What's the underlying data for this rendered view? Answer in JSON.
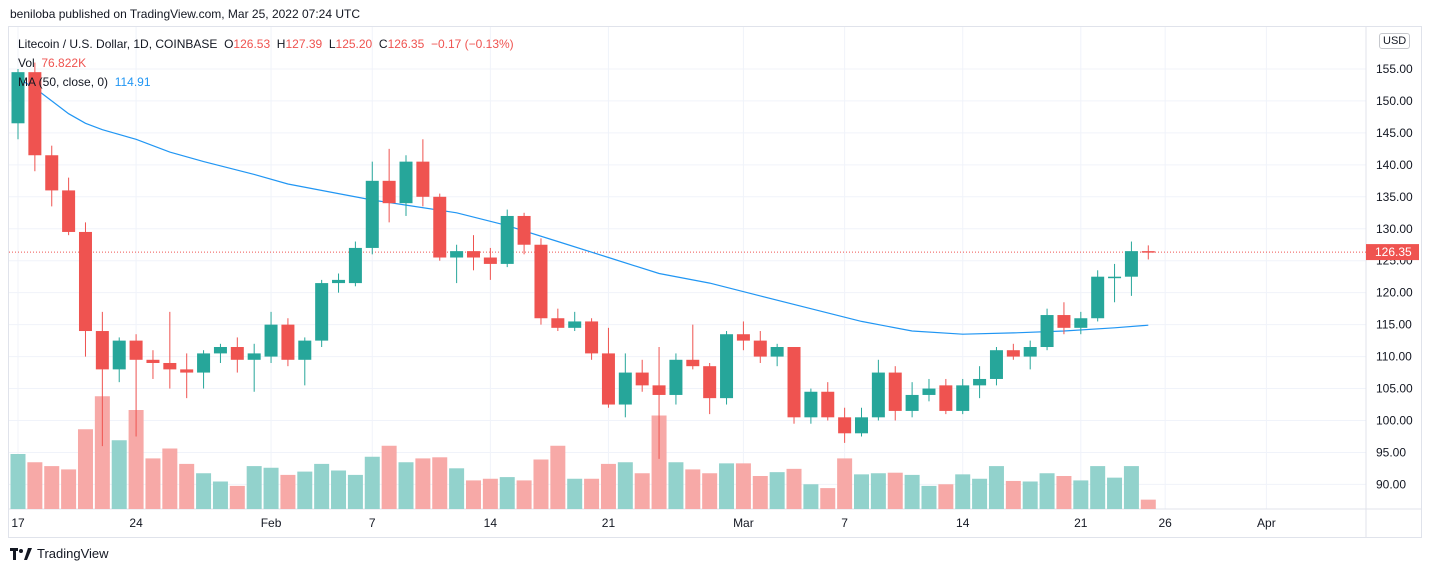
{
  "header": {
    "published": "beniloba published on TradingView.com, Mar 25, 2022 07:24 UTC"
  },
  "legend": {
    "symbol": "Litecoin / U.S. Dollar, 1D, COINBASE",
    "o_label": "O",
    "o": "126.53",
    "h_label": "H",
    "h": "127.39",
    "l_label": "L",
    "l": "125.20",
    "c_label": "C",
    "c": "126.35",
    "change": "−0.17 (−0.13%)",
    "vol_label": "Vol",
    "vol": "76.822K",
    "ma_label": "MA (50, close, 0)",
    "ma": "114.91"
  },
  "currency_badge": "USD",
  "price_tag": "126.35",
  "footer": {
    "brand": "TradingView"
  },
  "colors": {
    "up": "#26a69a",
    "down": "#ef5350",
    "up_vol": "#92d2cc",
    "down_vol": "#f7a9a7",
    "ma": "#2196f3",
    "grid": "#f0f3fa"
  },
  "chart_data": {
    "type": "candlestick",
    "ylim": [
      86,
      160
    ],
    "y_ticks": [
      "90.00",
      "95.00",
      "100.00",
      "105.00",
      "110.00",
      "115.00",
      "120.00",
      "125.00",
      "130.00",
      "135.00",
      "140.00",
      "145.00",
      "150.00",
      "155.00"
    ],
    "x_ticks": [
      {
        "label": "17",
        "date": "2022-01-17"
      },
      {
        "label": "24",
        "date": "2022-01-24"
      },
      {
        "label": "Feb",
        "date": "2022-02-01"
      },
      {
        "label": "7",
        "date": "2022-02-07"
      },
      {
        "label": "14",
        "date": "2022-02-14"
      },
      {
        "label": "21",
        "date": "2022-02-21"
      },
      {
        "label": "Mar",
        "date": "2022-03-01"
      },
      {
        "label": "7",
        "date": "2022-03-07"
      },
      {
        "label": "14",
        "date": "2022-03-14"
      },
      {
        "label": "21",
        "date": "2022-03-21"
      },
      {
        "label": "26",
        "date": "2022-03-26"
      },
      {
        "label": "Apr",
        "date": "2022-04-01"
      }
    ],
    "x_range": [
      "2022-01-17",
      "2022-04-05"
    ],
    "candles": [
      {
        "date": "2022-01-17",
        "o": 146.5,
        "h": 155.0,
        "l": 144.0,
        "c": 154.5,
        "v": 1.0
      },
      {
        "date": "2022-01-18",
        "o": 154.5,
        "h": 156.0,
        "l": 139.0,
        "c": 141.5,
        "v": 0.85
      },
      {
        "date": "2022-01-19",
        "o": 141.5,
        "h": 143.0,
        "l": 133.5,
        "c": 136.0,
        "v": 0.78
      },
      {
        "date": "2022-01-20",
        "o": 136.0,
        "h": 138.0,
        "l": 129.0,
        "c": 129.5,
        "v": 0.72
      },
      {
        "date": "2022-01-21",
        "o": 129.5,
        "h": 131.0,
        "l": 110.0,
        "c": 114.0,
        "v": 1.45
      },
      {
        "date": "2022-01-22",
        "o": 114.0,
        "h": 117.0,
        "l": 96.0,
        "c": 108.0,
        "v": 2.05
      },
      {
        "date": "2022-01-23",
        "o": 108.0,
        "h": 113.0,
        "l": 106.0,
        "c": 112.5,
        "v": 1.25
      },
      {
        "date": "2022-01-24",
        "o": 112.5,
        "h": 113.5,
        "l": 97.5,
        "c": 109.5,
        "v": 1.8
      },
      {
        "date": "2022-01-25",
        "o": 109.5,
        "h": 111.0,
        "l": 106.5,
        "c": 109.0,
        "v": 0.92
      },
      {
        "date": "2022-01-26",
        "o": 109.0,
        "h": 117.0,
        "l": 105.0,
        "c": 108.0,
        "v": 1.1
      },
      {
        "date": "2022-01-27",
        "o": 108.0,
        "h": 110.5,
        "l": 103.5,
        "c": 107.5,
        "v": 0.82
      },
      {
        "date": "2022-01-28",
        "o": 107.5,
        "h": 111.0,
        "l": 105.0,
        "c": 110.5,
        "v": 0.65
      },
      {
        "date": "2022-01-29",
        "o": 110.5,
        "h": 112.0,
        "l": 109.0,
        "c": 111.5,
        "v": 0.5
      },
      {
        "date": "2022-01-30",
        "o": 111.5,
        "h": 113.0,
        "l": 107.5,
        "c": 109.5,
        "v": 0.42
      },
      {
        "date": "2022-01-31",
        "o": 109.5,
        "h": 112.0,
        "l": 104.5,
        "c": 110.5,
        "v": 0.78
      },
      {
        "date": "2022-02-01",
        "o": 110.0,
        "h": 117.0,
        "l": 109.0,
        "c": 115.0,
        "v": 0.75
      },
      {
        "date": "2022-02-02",
        "o": 115.0,
        "h": 116.0,
        "l": 108.5,
        "c": 109.5,
        "v": 0.62
      },
      {
        "date": "2022-02-03",
        "o": 109.5,
        "h": 113.0,
        "l": 105.5,
        "c": 112.5,
        "v": 0.68
      },
      {
        "date": "2022-02-04",
        "o": 112.5,
        "h": 122.0,
        "l": 111.5,
        "c": 121.5,
        "v": 0.82
      },
      {
        "date": "2022-02-05",
        "o": 121.5,
        "h": 123.0,
        "l": 120.0,
        "c": 122.0,
        "v": 0.7
      },
      {
        "date": "2022-02-06",
        "o": 121.5,
        "h": 128.0,
        "l": 121.0,
        "c": 127.0,
        "v": 0.62
      },
      {
        "date": "2022-02-07",
        "o": 127.0,
        "h": 140.5,
        "l": 126.0,
        "c": 137.5,
        "v": 0.95
      },
      {
        "date": "2022-02-08",
        "o": 137.5,
        "h": 142.5,
        "l": 131.0,
        "c": 134.0,
        "v": 1.15
      },
      {
        "date": "2022-02-09",
        "o": 134.0,
        "h": 141.5,
        "l": 132.0,
        "c": 140.5,
        "v": 0.85
      },
      {
        "date": "2022-02-10",
        "o": 140.5,
        "h": 144.0,
        "l": 133.5,
        "c": 135.0,
        "v": 0.92
      },
      {
        "date": "2022-02-11",
        "o": 135.0,
        "h": 135.5,
        "l": 125.0,
        "c": 125.5,
        "v": 0.94
      },
      {
        "date": "2022-02-12",
        "o": 125.5,
        "h": 127.5,
        "l": 121.5,
        "c": 126.5,
        "v": 0.74
      },
      {
        "date": "2022-02-13",
        "o": 126.5,
        "h": 129.0,
        "l": 123.5,
        "c": 125.5,
        "v": 0.52
      },
      {
        "date": "2022-02-14",
        "o": 125.5,
        "h": 127.0,
        "l": 122.0,
        "c": 124.5,
        "v": 0.55
      },
      {
        "date": "2022-02-15",
        "o": 124.5,
        "h": 133.0,
        "l": 124.0,
        "c": 132.0,
        "v": 0.58
      },
      {
        "date": "2022-02-16",
        "o": 132.0,
        "h": 132.5,
        "l": 126.0,
        "c": 127.5,
        "v": 0.52
      },
      {
        "date": "2022-02-17",
        "o": 127.5,
        "h": 128.5,
        "l": 115.0,
        "c": 116.0,
        "v": 0.9
      },
      {
        "date": "2022-02-18",
        "o": 116.0,
        "h": 117.5,
        "l": 114.0,
        "c": 114.5,
        "v": 1.15
      },
      {
        "date": "2022-02-19",
        "o": 114.5,
        "h": 117.0,
        "l": 114.0,
        "c": 115.5,
        "v": 0.55
      },
      {
        "date": "2022-02-20",
        "o": 115.5,
        "h": 116.0,
        "l": 109.5,
        "c": 110.5,
        "v": 0.55
      },
      {
        "date": "2022-02-21",
        "o": 110.5,
        "h": 114.5,
        "l": 102.0,
        "c": 102.5,
        "v": 0.82
      },
      {
        "date": "2022-02-22",
        "o": 102.5,
        "h": 110.5,
        "l": 100.5,
        "c": 107.5,
        "v": 0.85
      },
      {
        "date": "2022-02-23",
        "o": 107.5,
        "h": 109.5,
        "l": 104.5,
        "c": 105.5,
        "v": 0.65
      },
      {
        "date": "2022-02-24",
        "o": 105.5,
        "h": 111.5,
        "l": 94.0,
        "c": 104.0,
        "v": 1.7
      },
      {
        "date": "2022-02-25",
        "o": 104.0,
        "h": 110.5,
        "l": 102.5,
        "c": 109.5,
        "v": 0.85
      },
      {
        "date": "2022-02-26",
        "o": 109.5,
        "h": 115.0,
        "l": 108.0,
        "c": 108.5,
        "v": 0.72
      },
      {
        "date": "2022-02-27",
        "o": 108.5,
        "h": 109.0,
        "l": 101.0,
        "c": 103.5,
        "v": 0.65
      },
      {
        "date": "2022-02-28",
        "o": 103.5,
        "h": 114.0,
        "l": 102.5,
        "c": 113.5,
        "v": 0.83
      },
      {
        "date": "2022-03-01",
        "o": 113.5,
        "h": 115.5,
        "l": 111.0,
        "c": 112.5,
        "v": 0.83
      },
      {
        "date": "2022-03-02",
        "o": 112.5,
        "h": 114.0,
        "l": 109.0,
        "c": 110.0,
        "v": 0.6
      },
      {
        "date": "2022-03-03",
        "o": 110.0,
        "h": 112.0,
        "l": 108.5,
        "c": 111.5,
        "v": 0.67
      },
      {
        "date": "2022-03-04",
        "o": 111.5,
        "h": 111.5,
        "l": 99.5,
        "c": 100.5,
        "v": 0.73
      },
      {
        "date": "2022-03-05",
        "o": 100.5,
        "h": 105.0,
        "l": 99.5,
        "c": 104.5,
        "v": 0.45
      },
      {
        "date": "2022-03-06",
        "o": 104.5,
        "h": 106.0,
        "l": 100.0,
        "c": 100.5,
        "v": 0.38
      },
      {
        "date": "2022-03-07",
        "o": 100.5,
        "h": 102.0,
        "l": 96.5,
        "c": 98.0,
        "v": 0.92
      },
      {
        "date": "2022-03-08",
        "o": 98.0,
        "h": 102.0,
        "l": 97.5,
        "c": 100.5,
        "v": 0.63
      },
      {
        "date": "2022-03-09",
        "o": 100.5,
        "h": 109.5,
        "l": 100.0,
        "c": 107.5,
        "v": 0.65
      },
      {
        "date": "2022-03-10",
        "o": 107.5,
        "h": 108.5,
        "l": 100.0,
        "c": 101.5,
        "v": 0.66
      },
      {
        "date": "2022-03-11",
        "o": 101.5,
        "h": 106.0,
        "l": 100.5,
        "c": 104.0,
        "v": 0.62
      },
      {
        "date": "2022-03-12",
        "o": 104.0,
        "h": 106.5,
        "l": 103.0,
        "c": 105.0,
        "v": 0.42
      },
      {
        "date": "2022-03-13",
        "o": 105.5,
        "h": 106.5,
        "l": 101.0,
        "c": 101.5,
        "v": 0.45
      },
      {
        "date": "2022-03-14",
        "o": 101.5,
        "h": 106.5,
        "l": 101.0,
        "c": 105.5,
        "v": 0.63
      },
      {
        "date": "2022-03-15",
        "o": 105.5,
        "h": 108.5,
        "l": 103.5,
        "c": 106.5,
        "v": 0.55
      },
      {
        "date": "2022-03-16",
        "o": 106.5,
        "h": 111.5,
        "l": 105.5,
        "c": 111.0,
        "v": 0.78
      },
      {
        "date": "2022-03-17",
        "o": 111.0,
        "h": 112.0,
        "l": 109.5,
        "c": 110.0,
        "v": 0.51
      },
      {
        "date": "2022-03-18",
        "o": 110.0,
        "h": 112.5,
        "l": 108.0,
        "c": 111.5,
        "v": 0.5
      },
      {
        "date": "2022-03-19",
        "o": 111.5,
        "h": 117.5,
        "l": 111.0,
        "c": 116.5,
        "v": 0.65
      },
      {
        "date": "2022-03-20",
        "o": 116.5,
        "h": 118.5,
        "l": 113.5,
        "c": 114.5,
        "v": 0.6
      },
      {
        "date": "2022-03-21",
        "o": 114.5,
        "h": 117.0,
        "l": 113.5,
        "c": 116.0,
        "v": 0.52
      },
      {
        "date": "2022-03-22",
        "o": 116.0,
        "h": 123.5,
        "l": 115.5,
        "c": 122.5,
        "v": 0.78
      },
      {
        "date": "2022-03-23",
        "o": 122.5,
        "h": 124.5,
        "l": 118.5,
        "c": 122.5,
        "v": 0.57
      },
      {
        "date": "2022-03-24",
        "o": 122.5,
        "h": 128.0,
        "l": 119.5,
        "c": 126.5,
        "v": 0.78
      },
      {
        "date": "2022-03-25",
        "o": 126.5,
        "h": 127.4,
        "l": 125.2,
        "c": 126.35,
        "v": 0.17
      }
    ],
    "ma50": [
      [
        "2022-01-17",
        153.5
      ],
      [
        "2022-01-18",
        152.0
      ],
      [
        "2022-01-19",
        150.0
      ],
      [
        "2022-01-20",
        148.0
      ],
      [
        "2022-01-21",
        146.5
      ],
      [
        "2022-01-22",
        145.5
      ],
      [
        "2022-01-24",
        144.0
      ],
      [
        "2022-01-26",
        142.0
      ],
      [
        "2022-01-28",
        140.5
      ],
      [
        "2022-01-31",
        138.5
      ],
      [
        "2022-02-02",
        137.0
      ],
      [
        "2022-02-05",
        135.5
      ],
      [
        "2022-02-07",
        134.5
      ],
      [
        "2022-02-09",
        133.7
      ],
      [
        "2022-02-12",
        132.5
      ],
      [
        "2022-02-15",
        130.5
      ],
      [
        "2022-02-18",
        128.0
      ],
      [
        "2022-02-21",
        125.5
      ],
      [
        "2022-02-24",
        123.0
      ],
      [
        "2022-02-27",
        121.5
      ],
      [
        "2022-03-02",
        119.5
      ],
      [
        "2022-03-05",
        117.5
      ],
      [
        "2022-03-08",
        115.5
      ],
      [
        "2022-03-11",
        114.0
      ],
      [
        "2022-03-14",
        113.5
      ],
      [
        "2022-03-17",
        113.7
      ],
      [
        "2022-03-20",
        114.0
      ],
      [
        "2022-03-23",
        114.5
      ],
      [
        "2022-03-25",
        114.91
      ]
    ],
    "last_price": 126.35
  }
}
